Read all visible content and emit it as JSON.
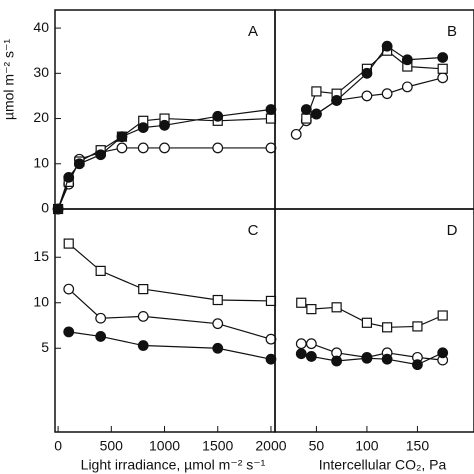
{
  "chart_data": [
    {
      "type": "line",
      "label": "A",
      "ylabel": "µmol m⁻² s⁻¹",
      "x": [
        0,
        100,
        200,
        400,
        600,
        800,
        1000,
        1500,
        2000
      ],
      "xlim": [
        -29,
        2038
      ],
      "ylim": [
        0,
        44
      ],
      "yticks": [
        0,
        10,
        20,
        30,
        40
      ],
      "series": [
        {
          "marker": "open-circle",
          "values": [
            0,
            5.5,
            11,
            12.5,
            13.5,
            13.5,
            13.5,
            13.5,
            13.5
          ]
        },
        {
          "marker": "open-square",
          "values": [
            0,
            6,
            10.5,
            13,
            16,
            19.5,
            20,
            19.5,
            20
          ]
        },
        {
          "marker": "filled-circle",
          "values": [
            0,
            7,
            10,
            12,
            16,
            18,
            18.5,
            20.5,
            22
          ]
        }
      ]
    },
    {
      "type": "line",
      "label": "B",
      "x": [
        30,
        40,
        50,
        70,
        100,
        120,
        140,
        175
      ],
      "xlim": [
        9,
        206
      ],
      "ylim": [
        0,
        44
      ],
      "series": [
        {
          "marker": "open-circle",
          "values": [
            16.5,
            19.5,
            21,
            24,
            25,
            25.5,
            27,
            29
          ]
        },
        {
          "marker": "open-square",
          "values": [
            null,
            20,
            26,
            25.5,
            31,
            35,
            31.5,
            31
          ]
        },
        {
          "marker": "filled-circle",
          "values": [
            null,
            22,
            21,
            24,
            30,
            36,
            33,
            33.5
          ]
        }
      ]
    },
    {
      "type": "line",
      "label": "C",
      "xlabel": "Light irradiance, µmol m⁻² s⁻¹",
      "x": [
        100,
        400,
        800,
        1500,
        2000
      ],
      "xlim": [
        -29,
        2038
      ],
      "ylim": [
        -4.2,
        20.3
      ],
      "xticks": [
        0,
        500,
        1000,
        1500,
        2000
      ],
      "yticks": [
        5,
        10,
        15
      ],
      "series": [
        {
          "marker": "open-square",
          "values": [
            16.5,
            13.5,
            11.5,
            10.3,
            10.2
          ]
        },
        {
          "marker": "open-circle",
          "values": [
            11.5,
            8.3,
            8.5,
            7.7,
            6.0
          ]
        },
        {
          "marker": "filled-circle",
          "values": [
            6.8,
            6.3,
            5.3,
            5.0,
            3.8
          ]
        }
      ]
    },
    {
      "type": "line",
      "label": "D",
      "xlabel": "Intercellular CO₂, Pa",
      "x": [
        35,
        45,
        70,
        100,
        120,
        150,
        175
      ],
      "xlim": [
        9,
        206
      ],
      "ylim": [
        -4.2,
        20.3
      ],
      "xticks": [
        50,
        100,
        150
      ],
      "series": [
        {
          "marker": "open-square",
          "values": [
            10,
            9.3,
            9.5,
            7.8,
            7.3,
            7.4,
            8.6
          ]
        },
        {
          "marker": "open-circle",
          "values": [
            5.5,
            5.5,
            4.5,
            4.0,
            4.5,
            4.0,
            3.7
          ]
        },
        {
          "marker": "filled-circle",
          "values": [
            4.4,
            4.1,
            3.6,
            3.9,
            3.8,
            3.2,
            4.5
          ]
        }
      ]
    }
  ]
}
